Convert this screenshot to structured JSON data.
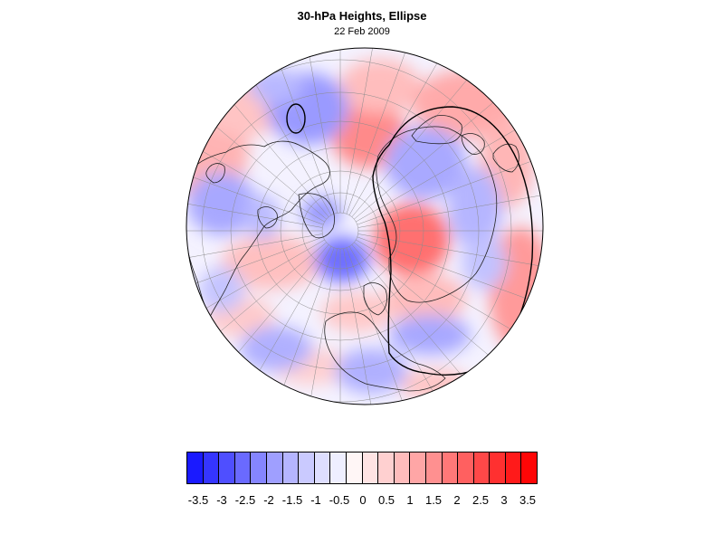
{
  "title": "30-hPa Heights, Ellipse",
  "date": "22 Feb 2009",
  "map": {
    "projection": "polar-stereographic-north",
    "field": "30-hPa height anomaly",
    "overlay": "ellipse-contour"
  },
  "colorbar": {
    "colors": [
      "#1a1aff",
      "#3535ff",
      "#4f4fff",
      "#6a6aff",
      "#8585ff",
      "#9f9fff",
      "#b5b5ff",
      "#cacaff",
      "#dedeff",
      "#efefff",
      "#fff6f6",
      "#ffe4e4",
      "#ffd0d0",
      "#ffbcbc",
      "#ffa6a6",
      "#ff9090",
      "#ff7878",
      "#ff6060",
      "#ff4848",
      "#ff3030",
      "#ff1a1a",
      "#ff0606"
    ],
    "labels": [
      "-3.5",
      "-3",
      "-2.5",
      "-2",
      "-1.5",
      "-1",
      "-0.5",
      "0",
      "0.5",
      "1",
      "1.5",
      "2",
      "2.5",
      "3",
      "3.5"
    ]
  }
}
